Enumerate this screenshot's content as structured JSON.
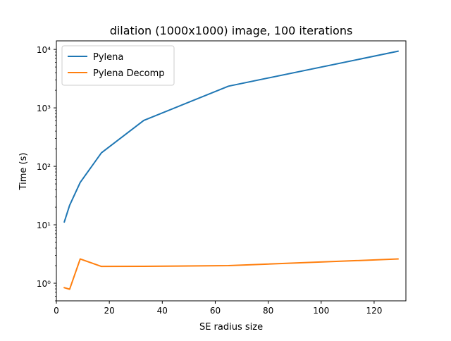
{
  "chart_data": {
    "type": "line",
    "title": "dilation (1000x1000) image, 100 iterations",
    "xlabel": "SE radius size",
    "ylabel": "Time (s)",
    "xlim": [
      0,
      132
    ],
    "ylim": [
      0.5,
      14000
    ],
    "y_scale": "log",
    "grid": false,
    "legend_position": "top-left",
    "x_ticks": [
      0,
      20,
      40,
      60,
      80,
      100,
      120
    ],
    "y_ticks": [
      {
        "value": 1,
        "label": "10⁰"
      },
      {
        "value": 10,
        "label": "10¹"
      },
      {
        "value": 100,
        "label": "10²"
      },
      {
        "value": 1000,
        "label": "10³"
      },
      {
        "value": 10000,
        "label": "10⁴"
      }
    ],
    "series": [
      {
        "name": "Pylena",
        "color": "#1f77b4",
        "points": [
          {
            "x": 3,
            "y": 11.2
          },
          {
            "x": 5,
            "y": 21.5
          },
          {
            "x": 9,
            "y": 53
          },
          {
            "x": 17,
            "y": 170
          },
          {
            "x": 33,
            "y": 610
          },
          {
            "x": 65,
            "y": 2350
          },
          {
            "x": 129,
            "y": 9300
          }
        ]
      },
      {
        "name": "Pylena Decomp",
        "color": "#ff7f0e",
        "points": [
          {
            "x": 3,
            "y": 0.84
          },
          {
            "x": 5,
            "y": 0.79
          },
          {
            "x": 9,
            "y": 2.6
          },
          {
            "x": 17,
            "y": 1.94
          },
          {
            "x": 33,
            "y": 1.95
          },
          {
            "x": 65,
            "y": 2.0
          },
          {
            "x": 129,
            "y": 2.6
          }
        ]
      }
    ]
  }
}
